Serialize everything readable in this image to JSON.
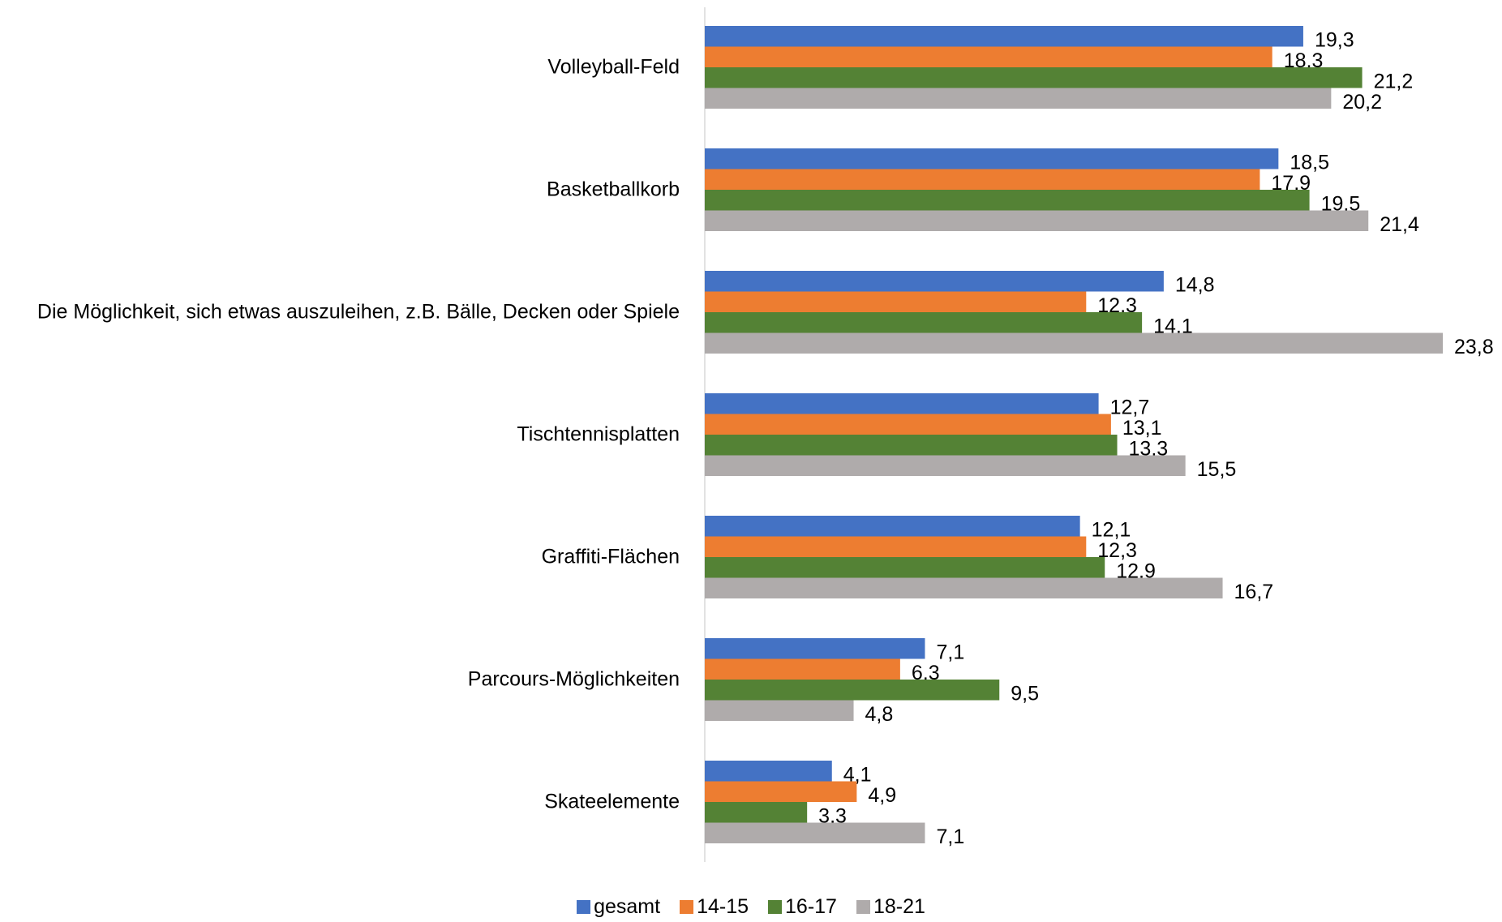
{
  "chart_data": {
    "type": "bar",
    "orientation": "horizontal",
    "categories": [
      "Volleyball-Feld",
      "Basketballkorb",
      "Die Möglichkeit, sich etwas auszuleihen, z.B. Bälle, Decken oder Spiele",
      "Tischtennisplatten",
      "Graffiti-Flächen",
      "Parcours-Möglichkeiten",
      "Skateelemente"
    ],
    "series": [
      {
        "name": "gesamt",
        "color": "#4472c4",
        "values": [
          19.3,
          18.5,
          14.8,
          12.7,
          12.1,
          7.1,
          4.1
        ],
        "value_labels": [
          "19,3",
          "18,5",
          "14,8",
          "12,7",
          "12,1",
          "7,1",
          "4,1"
        ]
      },
      {
        "name": "14-15",
        "color": "#ed7d31",
        "values": [
          18.3,
          17.9,
          12.3,
          13.1,
          12.3,
          6.3,
          4.9
        ],
        "value_labels": [
          "18,3",
          "17,9",
          "12,3",
          "13,1",
          "12,3",
          "6,3",
          "4,9"
        ]
      },
      {
        "name": "16-17",
        "color": "#548235",
        "values": [
          21.2,
          19.5,
          14.1,
          13.3,
          12.9,
          9.5,
          3.3
        ],
        "value_labels": [
          "21,2",
          "19,5",
          "14,1",
          "13,3",
          "12,9",
          "9,5",
          "3,3"
        ]
      },
      {
        "name": "18-21",
        "color": "#afabab",
        "values": [
          20.2,
          21.4,
          23.8,
          15.5,
          16.7,
          4.8,
          7.1
        ],
        "value_labels": [
          "20,2",
          "21,4",
          "23,8",
          "15,5",
          "16,7",
          "4,8",
          "7,1"
        ]
      }
    ],
    "legend": "bottom"
  }
}
